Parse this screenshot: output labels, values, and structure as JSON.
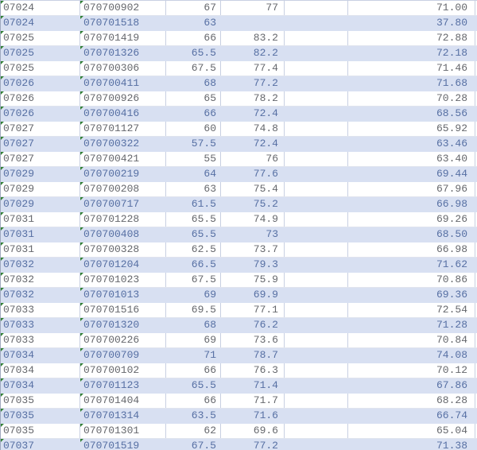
{
  "colors": {
    "band_fill": "#d8e0f2",
    "grid_border": "#c8d0e2",
    "row_divider": "#e0e4ee",
    "sheet_left_edge": "#9fa9bf",
    "text_plain_row": "#65676c",
    "text_band_row": "#566fa3",
    "text_format_indicator_green": "#2f7e33"
  },
  "table": {
    "text_format_indicator_columns": [
      0,
      1
    ],
    "rows": [
      {
        "cells": [
          "07024",
          "070700902",
          "67",
          "77",
          "",
          "71.00"
        ]
      },
      {
        "cells": [
          "07024",
          "070701518",
          "63",
          "",
          "",
          "37.80"
        ]
      },
      {
        "cells": [
          "07025",
          "070701419",
          "66",
          "83.2",
          "",
          "72.88"
        ]
      },
      {
        "cells": [
          "07025",
          "070701326",
          "65.5",
          "82.2",
          "",
          "72.18"
        ]
      },
      {
        "cells": [
          "07025",
          "070700306",
          "67.5",
          "77.4",
          "",
          "71.46"
        ]
      },
      {
        "cells": [
          "07026",
          "070700411",
          "68",
          "77.2",
          "",
          "71.68"
        ]
      },
      {
        "cells": [
          "07026",
          "070700926",
          "65",
          "78.2",
          "",
          "70.28"
        ]
      },
      {
        "cells": [
          "07026",
          "070700416",
          "66",
          "72.4",
          "",
          "68.56"
        ]
      },
      {
        "cells": [
          "07027",
          "070701127",
          "60",
          "74.8",
          "",
          "65.92"
        ]
      },
      {
        "cells": [
          "07027",
          "070700322",
          "57.5",
          "72.4",
          "",
          "63.46"
        ]
      },
      {
        "cells": [
          "07027",
          "070700421",
          "55",
          "76",
          "",
          "63.40"
        ]
      },
      {
        "cells": [
          "07029",
          "070700219",
          "64",
          "77.6",
          "",
          "69.44"
        ]
      },
      {
        "cells": [
          "07029",
          "070700208",
          "63",
          "75.4",
          "",
          "67.96"
        ]
      },
      {
        "cells": [
          "07029",
          "070700717",
          "61.5",
          "75.2",
          "",
          "66.98"
        ]
      },
      {
        "cells": [
          "07031",
          "070701228",
          "65.5",
          "74.9",
          "",
          "69.26"
        ]
      },
      {
        "cells": [
          "07031",
          "070700408",
          "65.5",
          "73",
          "",
          "68.50"
        ]
      },
      {
        "cells": [
          "07031",
          "070700328",
          "62.5",
          "73.7",
          "",
          "66.98"
        ]
      },
      {
        "cells": [
          "07032",
          "070701204",
          "66.5",
          "79.3",
          "",
          "71.62"
        ]
      },
      {
        "cells": [
          "07032",
          "070701023",
          "67.5",
          "75.9",
          "",
          "70.86"
        ]
      },
      {
        "cells": [
          "07032",
          "070701013",
          "69",
          "69.9",
          "",
          "69.36"
        ]
      },
      {
        "cells": [
          "07033",
          "070701516",
          "69.5",
          "77.1",
          "",
          "72.54"
        ]
      },
      {
        "cells": [
          "07033",
          "070701320",
          "68",
          "76.2",
          "",
          "71.28"
        ]
      },
      {
        "cells": [
          "07033",
          "070700226",
          "69",
          "73.6",
          "",
          "70.84"
        ]
      },
      {
        "cells": [
          "07034",
          "070700709",
          "71",
          "78.7",
          "",
          "74.08"
        ]
      },
      {
        "cells": [
          "07034",
          "070700102",
          "66",
          "76.3",
          "",
          "70.12"
        ]
      },
      {
        "cells": [
          "07034",
          "070701123",
          "65.5",
          "71.4",
          "",
          "67.86"
        ]
      },
      {
        "cells": [
          "07035",
          "070701404",
          "66",
          "71.7",
          "",
          "68.28"
        ]
      },
      {
        "cells": [
          "07035",
          "070701314",
          "63.5",
          "71.6",
          "",
          "66.74"
        ]
      },
      {
        "cells": [
          "07035",
          "070701301",
          "62",
          "69.6",
          "",
          "65.04"
        ]
      },
      {
        "cells": [
          "07037",
          "070701519",
          "67.5",
          "77.2",
          "",
          "71.38"
        ]
      }
    ]
  }
}
